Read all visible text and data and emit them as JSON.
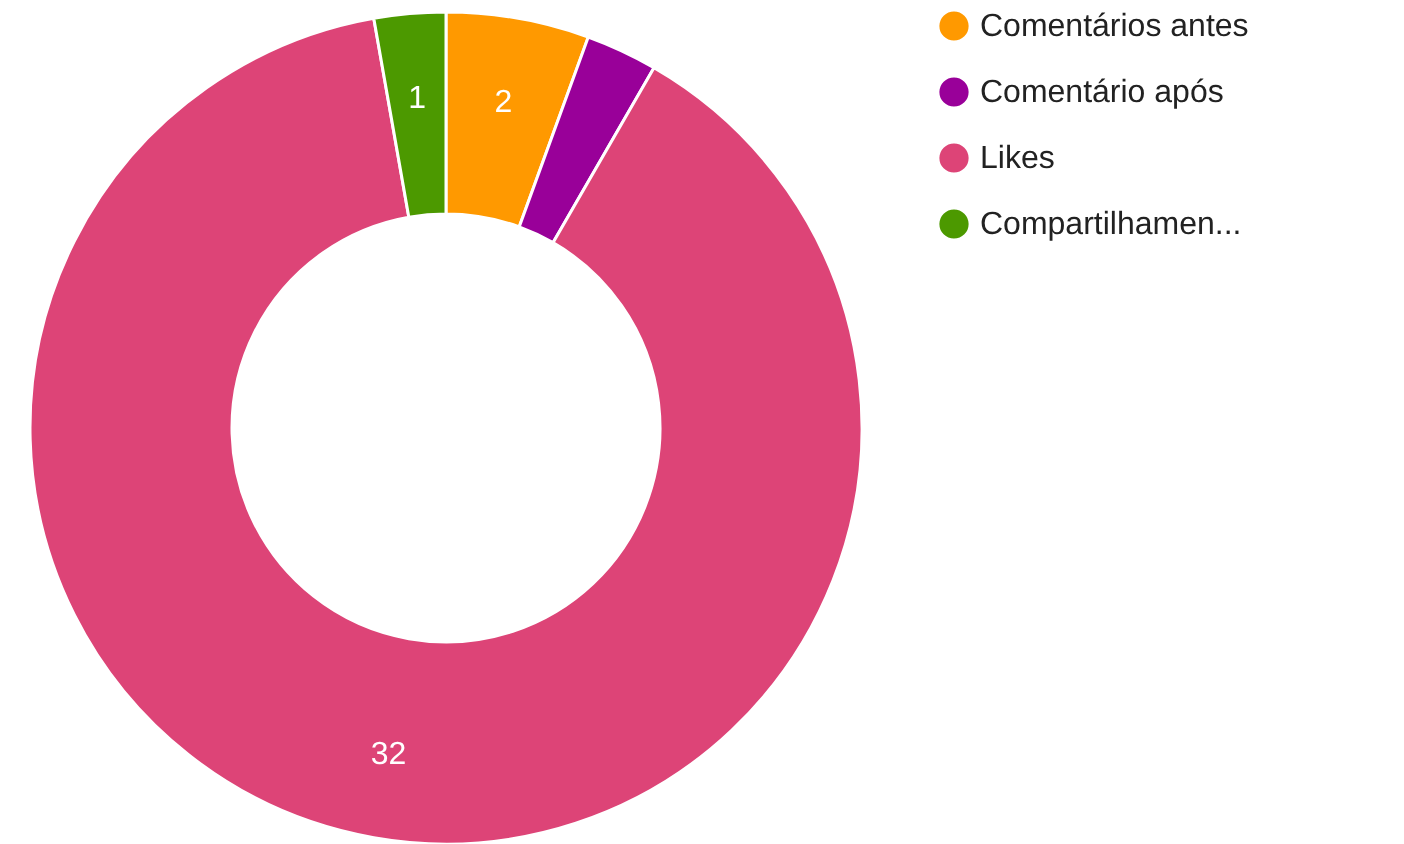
{
  "chart_data": {
    "type": "donut",
    "categories": [
      "Comentários antes",
      "Comentário após",
      "Likes",
      "Compartilhamen..."
    ],
    "values": [
      2,
      1,
      32,
      1
    ],
    "value_labels": [
      "2",
      null,
      "32",
      "1"
    ],
    "colors": [
      "#ff9900",
      "#990099",
      "#dd4477",
      "#4c9900"
    ],
    "legend": "top right"
  }
}
